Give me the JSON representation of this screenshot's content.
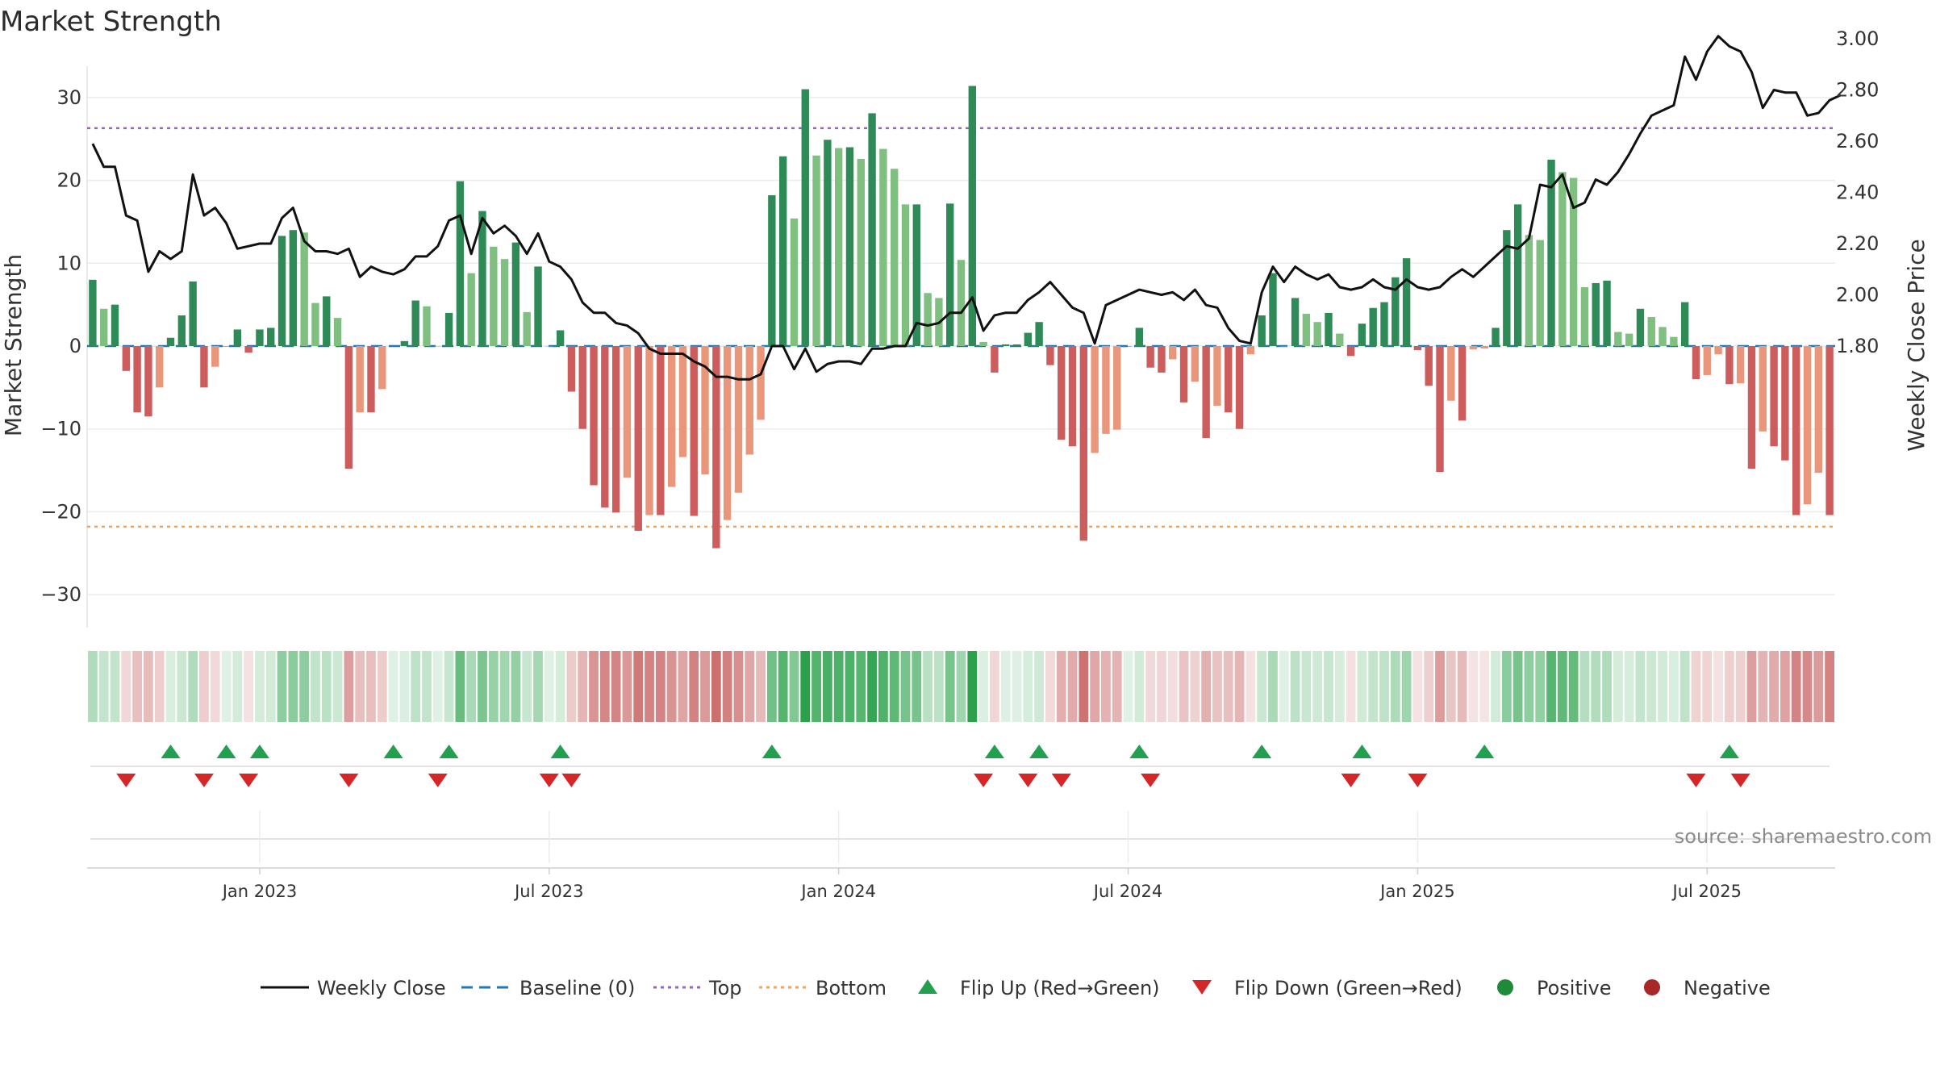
{
  "chart_data": {
    "type": "bar",
    "title": "Market Strength",
    "ylabel_left": "Market Strength",
    "ylabel_right": "Weekly Close Price",
    "ylim_left": [
      -35,
      35
    ],
    "ylim_right": [
      1.65,
      3.05
    ],
    "yticks_left": [
      "30",
      "20",
      "10",
      "0",
      "−10",
      "−20",
      "−30"
    ],
    "yticks_left_values": [
      30,
      20,
      10,
      0,
      -10,
      -20,
      -30
    ],
    "yticks_right": [
      "3.00",
      "2.80",
      "2.60",
      "2.40",
      "2.20",
      "2.00",
      "1.80"
    ],
    "yticks_right_values": [
      3.0,
      2.8,
      2.6,
      2.4,
      2.2,
      2.0,
      1.8
    ],
    "x_start_week": 0,
    "x_ticks": [
      "Jan 2023",
      "Jul 2023",
      "Jan 2024",
      "Jul 2024",
      "Jan 2025",
      "Jul 2025"
    ],
    "x_tick_weeks": [
      15,
      41,
      67,
      93,
      119,
      145
    ],
    "top_level": 26.3,
    "bottom_level": -21.8,
    "baseline": 0,
    "strength": [
      8,
      4.5,
      5,
      -3,
      -8,
      -8.5,
      -5,
      1,
      3.7,
      7.8,
      -5,
      -2.5,
      0,
      2,
      -0.8,
      2,
      2.2,
      13.3,
      14,
      13.7,
      5.2,
      6,
      3.4,
      -14.8,
      -8,
      -8,
      -5.2,
      0,
      0.6,
      5.5,
      4.8,
      0,
      4,
      19.9,
      8.8,
      16.3,
      12,
      10.5,
      12.5,
      4.1,
      9.6,
      0,
      1.9,
      -5.5,
      -10,
      -16.8,
      -19.5,
      -20.1,
      -15.9,
      -22.3,
      -20.4,
      -20.4,
      -17,
      -13.4,
      -20.5,
      -15.5,
      -24.4,
      -21,
      -17.7,
      -13.1,
      -8.9,
      18.2,
      22.9,
      15.4,
      31,
      23,
      24.9,
      23.9,
      24,
      22.6,
      28.1,
      23.8,
      21.4,
      17.1,
      17.1,
      6.4,
      5.8,
      17.2,
      10.4,
      31.4,
      0.5,
      -3.2,
      0.2,
      0.2,
      1.6,
      2.9,
      -2.3,
      -11.3,
      -12.1,
      -23.5,
      -12.9,
      -10.6,
      -10.1,
      0,
      2.2,
      -2.6,
      -3.2,
      -1.6,
      -6.8,
      -4.3,
      -11.1,
      -7.2,
      -8,
      -10,
      -1,
      3.7,
      8.8,
      0,
      5.8,
      3.9,
      2.9,
      4,
      1.5,
      -1.2,
      2.7,
      4.6,
      5.3,
      8.3,
      10.6,
      -0.5,
      -4.8,
      -15.2,
      -6.6,
      -9,
      -0.4,
      -0.3,
      2.2,
      14,
      17.1,
      13.4,
      12.8,
      22.5,
      21,
      20.3,
      7.1,
      7.6,
      7.9,
      1.7,
      1.5,
      4.5,
      3.5,
      2.3,
      1.1,
      5.3,
      -4,
      -3.5,
      -1,
      -4.6,
      -4.5,
      -14.8,
      -10.3,
      -12.1,
      -13.8,
      -20.4,
      -19.1,
      -15.3,
      -20.4
    ],
    "weekly_close": [
      2.59,
      2.5,
      2.5,
      2.31,
      2.29,
      2.09,
      2.17,
      2.14,
      2.17,
      2.47,
      2.31,
      2.34,
      2.28,
      2.18,
      2.19,
      2.2,
      2.2,
      2.3,
      2.34,
      2.21,
      2.17,
      2.17,
      2.16,
      2.18,
      2.07,
      2.11,
      2.09,
      2.08,
      2.1,
      2.15,
      2.15,
      2.19,
      2.29,
      2.31,
      2.16,
      2.3,
      2.24,
      2.27,
      2.23,
      2.16,
      2.24,
      2.13,
      2.11,
      2.06,
      1.97,
      1.93,
      1.93,
      1.89,
      1.88,
      1.85,
      1.79,
      1.77,
      1.77,
      1.77,
      1.74,
      1.72,
      1.68,
      1.68,
      1.67,
      1.67,
      1.69,
      1.8,
      1.8,
      1.71,
      1.79,
      1.7,
      1.73,
      1.74,
      1.74,
      1.73,
      1.79,
      1.79,
      1.8,
      1.8,
      1.89,
      1.88,
      1.89,
      1.93,
      1.93,
      1.99,
      1.86,
      1.92,
      1.93,
      1.93,
      1.98,
      2.01,
      2.05,
      2.0,
      1.95,
      1.93,
      1.81,
      1.96,
      1.98,
      2.0,
      2.02,
      2.01,
      2.0,
      2.01,
      1.98,
      2.02,
      1.96,
      1.95,
      1.87,
      1.82,
      1.81,
      2.01,
      2.11,
      2.05,
      2.11,
      2.08,
      2.06,
      2.08,
      2.03,
      2.02,
      2.03,
      2.06,
      2.03,
      2.02,
      2.06,
      2.03,
      2.02,
      2.03,
      2.07,
      2.1,
      2.07,
      2.11,
      2.15,
      2.19,
      2.18,
      2.22,
      2.43,
      2.42,
      2.47,
      2.34,
      2.36,
      2.45,
      2.43,
      2.48,
      2.55,
      2.63,
      2.7,
      2.72,
      2.74,
      2.93,
      2.84,
      2.95,
      3.01,
      2.97,
      2.95,
      2.87,
      2.73,
      2.8,
      2.79,
      2.79,
      2.7,
      2.71,
      2.76,
      2.78
    ],
    "flip_up_weeks": [
      7,
      12,
      15,
      27,
      32,
      42,
      61,
      81,
      85,
      94,
      105,
      114,
      125,
      147
    ],
    "flip_down_weeks": [
      3,
      10,
      14,
      23,
      31,
      41,
      43,
      80,
      84,
      87,
      95,
      113,
      119,
      144,
      148
    ],
    "series": [
      {
        "name": "Weekly Close",
        "color": "#111111"
      },
      {
        "name": "Baseline (0)",
        "color": "#1f77b4"
      },
      {
        "name": "Top",
        "color": "#9467bd"
      },
      {
        "name": "Bottom",
        "color": "#f0a35e"
      },
      {
        "name": "Flip Up (Red→Green)",
        "color": "#22a050"
      },
      {
        "name": "Flip Down (Green→Red)",
        "color": "#d62728"
      },
      {
        "name": "Positive",
        "color": "#1e8a3a"
      },
      {
        "name": "Negative",
        "color": "#a82828"
      }
    ],
    "colors": {
      "pos_strong": "#2e8b57",
      "pos_light": "#7fbf7f",
      "neg_strong": "#cd5c5c",
      "neg_light": "#e9967a"
    },
    "source_text": "source: sharemaestro.com",
    "grid": true,
    "legend_position": "bottom"
  }
}
